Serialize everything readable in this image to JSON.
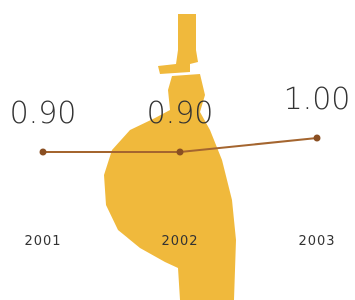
{
  "chart_data": {
    "type": "line",
    "categories": [
      "2001",
      "2002",
      "2003"
    ],
    "values": [
      0.9,
      0.9,
      1.0
    ],
    "value_labels": [
      "0.90",
      "0.90",
      "1.00"
    ],
    "color": "#a4652f",
    "ylim": [
      0,
      1.1
    ]
  }
}
